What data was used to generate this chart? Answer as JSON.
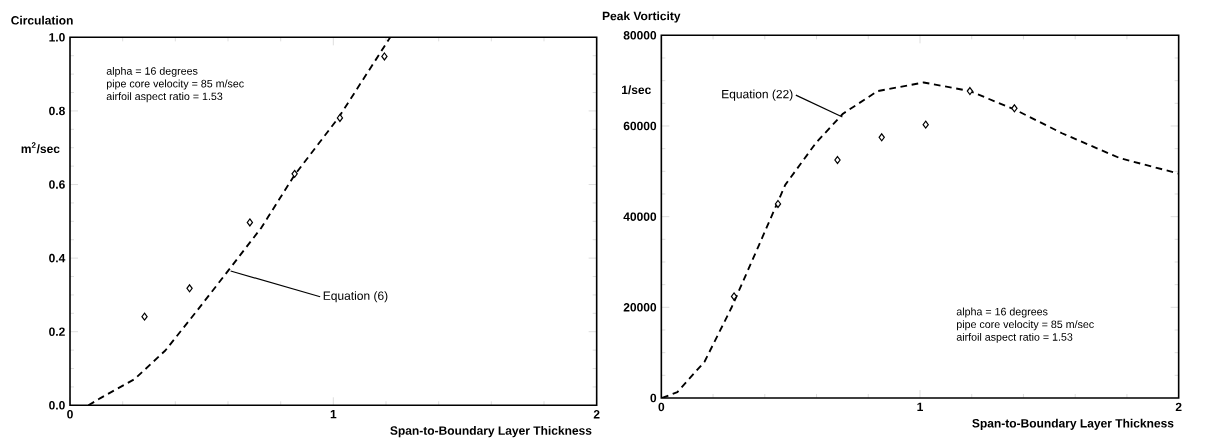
{
  "chart_data": [
    {
      "type": "scatter",
      "title": "Circulation",
      "xlabel": "Span-to-Boundary Layer Thickness",
      "ylabel": "m$^{2}$/sec",
      "xlim": [
        0,
        2
      ],
      "xticks": [
        0,
        1,
        2
      ],
      "ylim": [
        0,
        1
      ],
      "yticks": [
        {
          "value": 0,
          "label": "0.0"
        },
        {
          "value": 0.2,
          "label": "0.2"
        },
        {
          "value": 0.4,
          "label": "0.4"
        },
        {
          "value": 0.6,
          "label": "0.6"
        },
        {
          "value": 0.8,
          "label": "0.8"
        },
        {
          "value": 1.0,
          "label": "1.0"
        }
      ],
      "grid": false,
      "series": [
        {
          "marker": "diamond",
          "color": "#000000",
          "x": [
            0.283,
            0.454,
            0.683,
            0.853,
            1.025,
            1.194
          ],
          "values": [
            0.241,
            0.318,
            0.497,
            0.629,
            0.781,
            0.948
          ]
        },
        {
          "type": "line",
          "marker": "none",
          "line_style": "dashed",
          "color": "#000000",
          "x": [
            0.07,
            0.114,
            0.245,
            0.362,
            0.479,
            0.603,
            0.727,
            0.851,
            1.019,
            1.216
          ],
          "values": [
            0,
            0.019,
            0.071,
            0.149,
            0.254,
            0.368,
            0.483,
            0.624,
            0.781,
            1.0
          ]
        }
      ],
      "annotations": [
        "alpha = 16 degrees",
        "pipe core velocity = 85 m/sec",
        "airfoil aspect ratio = 1.53",
        {
          "text": "Equation (6)",
          "x": 0.61,
          "y": 0.365
        }
      ]
    },
    {
      "type": "scatter",
      "title": "Peak Vorticity",
      "xlabel": "Span-to-Boundary Layer Thickness",
      "ylabel": "1/sec",
      "xlim": [
        0,
        2
      ],
      "xticks": [
        0,
        1,
        2
      ],
      "ylim": [
        0,
        80000
      ],
      "yticks": [
        0,
        20000,
        40000,
        60000,
        80000
      ],
      "grid": false,
      "series": [
        {
          "marker": "diamond",
          "color": "#000000",
          "x": [
            0.281,
            0.451,
            0.681,
            0.852,
            1.022,
            1.193,
            1.365
          ],
          "values": [
            22400,
            42800,
            52500,
            57500,
            60300,
            67700,
            63900
          ]
        },
        {
          "type": "line",
          "marker": "none",
          "line_style": "dashed",
          "color": "#000000",
          "x": [
            0.003,
            0.062,
            0.167,
            0.271,
            0.375,
            0.479,
            0.598,
            0.702,
            0.836,
            1.014,
            1.193,
            1.371,
            1.549,
            1.773,
            2.0
          ],
          "values": [
            0,
            1300,
            8000,
            19900,
            33400,
            47000,
            56300,
            62700,
            67700,
            69600,
            67700,
            63500,
            58400,
            52900,
            49500
          ]
        }
      ],
      "annotations": [
        {
          "text": "Equation (22)",
          "x": 0.7,
          "y": 62000
        },
        "alpha = 16 degrees",
        "pipe core velocity = 85 m/sec",
        "airfoil aspect ratio = 1.53"
      ]
    }
  ]
}
